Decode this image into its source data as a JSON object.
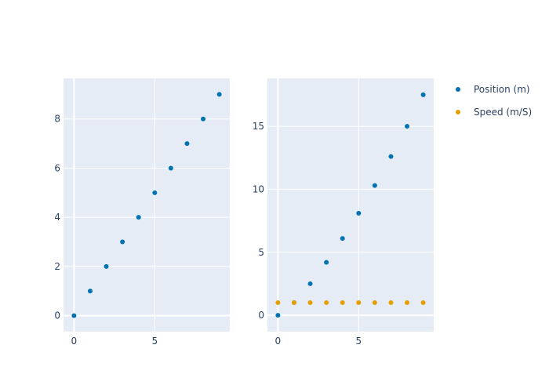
{
  "chart_data": [
    {
      "type": "scatter",
      "title": "",
      "xlabel": "",
      "ylabel": "",
      "xlim": [
        -0.65,
        9.65
      ],
      "ylim": [
        -0.65,
        9.65
      ],
      "xticks": [
        0,
        5
      ],
      "yticks": [
        0,
        2,
        4,
        6,
        8
      ],
      "grid": true,
      "series": [
        {
          "name": "Position (m)",
          "color": "#0072B2",
          "x": [
            0,
            1,
            2,
            3,
            4,
            5,
            6,
            7,
            8,
            9
          ],
          "y": [
            0,
            1,
            2,
            3,
            4,
            5,
            6,
            7,
            8,
            9
          ]
        }
      ]
    },
    {
      "type": "scatter",
      "title": "",
      "xlabel": "",
      "ylabel": "",
      "xlim": [
        -0.65,
        9.65
      ],
      "ylim": [
        -1.3,
        18.8
      ],
      "xticks": [
        0,
        5
      ],
      "yticks": [
        0,
        5,
        10,
        15
      ],
      "grid": true,
      "series": [
        {
          "name": "Position (m)",
          "color": "#0072B2",
          "x": [
            0,
            1,
            2,
            3,
            4,
            5,
            6,
            7,
            8,
            9
          ],
          "y": [
            0,
            1,
            2.5,
            4.2,
            6.1,
            8.1,
            10.3,
            12.6,
            15.0,
            17.5
          ]
        },
        {
          "name": "Speed (m/S)",
          "color": "#E69F00",
          "x": [
            0,
            1,
            2,
            3,
            4,
            5,
            6,
            7,
            8,
            9
          ],
          "y": [
            1,
            1,
            1,
            1,
            1,
            1,
            1,
            1,
            1,
            1
          ]
        }
      ]
    }
  ],
  "legend": {
    "placement": "top-right",
    "items": [
      {
        "label": "Position (m)",
        "color": "#0072B2"
      },
      {
        "label": "Speed (m/S)",
        "color": "#E69F00"
      }
    ]
  }
}
